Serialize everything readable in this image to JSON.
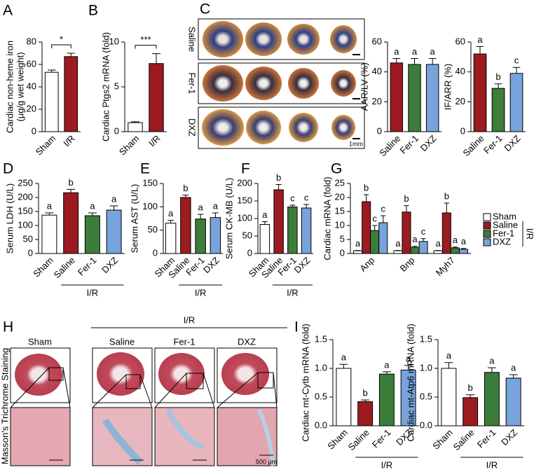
{
  "figure": {
    "panels": [
      "A",
      "B",
      "C",
      "D",
      "E",
      "F",
      "G",
      "H",
      "I"
    ],
    "c_rows": [
      "Saline",
      "Fer-1",
      "DXZ"
    ],
    "c_scale": "1mm",
    "h_columns": [
      "Sham",
      "Saline",
      "Fer-1",
      "DXZ"
    ],
    "h_group": "I/R",
    "h_side": "Masson's Trichrome Staining",
    "h_scale": "500 μm"
  },
  "chart_data": [
    {
      "type": "bar",
      "ylabel": [
        "Cardiac non-heme iron",
        "(μg/g wet weight)"
      ],
      "categories": [
        "Sham",
        "I/R"
      ],
      "values": [
        53,
        67
      ],
      "errors": [
        2,
        3
      ],
      "colors": [
        "#ffffff",
        "#9b1b20"
      ],
      "significance": "*",
      "ylim": [
        0,
        80
      ],
      "yticks": [
        0,
        20,
        40,
        60,
        80
      ]
    },
    {
      "type": "bar",
      "ylabel": "Cardiac Ptgs2 mRNA (fold)",
      "categories": [
        "Sham",
        "I/R"
      ],
      "values": [
        1,
        7.6
      ],
      "errors": [
        0.1,
        1.1
      ],
      "colors": [
        "#ffffff",
        "#9b1b20"
      ],
      "significance": "***",
      "ylim": [
        0,
        10
      ],
      "yticks": [
        0,
        5,
        10
      ]
    },
    {
      "type": "bar",
      "ylabel": "AAR/LV (%)",
      "categories": [
        "Saline",
        "Fer-1",
        "DXZ"
      ],
      "values": [
        46,
        45,
        45
      ],
      "errors": [
        3,
        4,
        4
      ],
      "colors": [
        "#9b1b20",
        "#3c7d3a",
        "#78a3dc"
      ],
      "letters": [
        "a",
        "a",
        "a"
      ],
      "ylim": [
        0,
        60
      ],
      "yticks": [
        0,
        20,
        40,
        60
      ]
    },
    {
      "type": "bar",
      "ylabel": "IF/ARR (%)",
      "categories": [
        "Saline",
        "Fer-1",
        "DXZ"
      ],
      "values": [
        52,
        29,
        39
      ],
      "errors": [
        5,
        3,
        4
      ],
      "colors": [
        "#9b1b20",
        "#3c7d3a",
        "#78a3dc"
      ],
      "letters": [
        "a",
        "b",
        "c"
      ],
      "ylim": [
        0,
        60
      ],
      "yticks": [
        0,
        20,
        40,
        60
      ]
    },
    {
      "type": "bar",
      "ylabel": "Serum LDH (U/L)",
      "categories": [
        "Sham",
        "Saline",
        "Fer-1",
        "DXZ"
      ],
      "values": [
        137,
        217,
        135,
        155
      ],
      "errors": [
        8,
        12,
        10,
        15
      ],
      "colors": [
        "#ffffff",
        "#9b1b20",
        "#3c7d3a",
        "#78a3dc"
      ],
      "letters": [
        "a",
        "b",
        "a",
        "a"
      ],
      "group_label": "I/R",
      "ylim": [
        0,
        250
      ],
      "yticks": [
        0,
        50,
        100,
        150,
        200,
        250
      ]
    },
    {
      "type": "bar",
      "ylabel": "Serum AST (U/L)",
      "categories": [
        "Sham",
        "Saline",
        "Fer-1",
        "DXZ"
      ],
      "values": [
        65,
        120,
        74,
        77
      ],
      "errors": [
        6,
        5,
        10,
        10
      ],
      "colors": [
        "#ffffff",
        "#9b1b20",
        "#3c7d3a",
        "#78a3dc"
      ],
      "letters": [
        "a",
        "b",
        "a",
        "a"
      ],
      "group_label": "I/R",
      "ylim": [
        0,
        150
      ],
      "yticks": [
        0,
        50,
        100,
        150
      ]
    },
    {
      "type": "bar",
      "ylabel": "Serum CK-MB (U/L)",
      "categories": [
        "Sham",
        "Saline",
        "Fer-1",
        "DXZ"
      ],
      "values": [
        83,
        182,
        133,
        130
      ],
      "errors": [
        8,
        15,
        5,
        10
      ],
      "colors": [
        "#ffffff",
        "#9b1b20",
        "#3c7d3a",
        "#78a3dc"
      ],
      "letters": [
        "a",
        "b",
        "c",
        "c"
      ],
      "group_label": "I/R",
      "ylim": [
        0,
        200
      ],
      "yticks": [
        0,
        50,
        100,
        150,
        200
      ]
    },
    {
      "type": "bar",
      "ylabel": "Cardiac mRNA (fold)",
      "categories": [
        "Anp",
        "Bnp",
        "Myh7"
      ],
      "legend_group": "I/R",
      "series": [
        {
          "name": "Sham",
          "color": "#ffffff",
          "values": [
            1,
            1,
            1
          ],
          "errors": [
            0.1,
            0.1,
            0.1
          ],
          "letters": [
            "a",
            "a",
            "a"
          ]
        },
        {
          "name": "Saline",
          "color": "#9b1b20",
          "values": [
            18.5,
            14.8,
            14.5
          ],
          "errors": [
            2.5,
            2.3,
            3.5
          ],
          "letters": [
            "b",
            "b",
            "b"
          ]
        },
        {
          "name": "Fer-1",
          "color": "#3c7d3a",
          "values": [
            8.2,
            2.2,
            2
          ],
          "errors": [
            1.8,
            0.4,
            0.3
          ],
          "letters": [
            "c",
            "a",
            "a"
          ]
        },
        {
          "name": "DXZ",
          "color": "#78a3dc",
          "values": [
            11,
            4.3,
            1.5
          ],
          "errors": [
            2.5,
            1,
            0.3
          ],
          "letters": [
            "c",
            "c",
            "a"
          ]
        }
      ],
      "ylim": [
        0,
        25
      ],
      "yticks": [
        0,
        5,
        10,
        15,
        20,
        25
      ]
    },
    {
      "type": "bar",
      "ylabel": "Cardiac mt-Cytb mRNA (fold)",
      "categories": [
        "Sham",
        "Saline",
        "Fer-1",
        "DXZ"
      ],
      "values": [
        1.0,
        0.42,
        0.9,
        0.97
      ],
      "errors": [
        0.07,
        0.03,
        0.04,
        0.08
      ],
      "colors": [
        "#ffffff",
        "#9b1b20",
        "#3c7d3a",
        "#78a3dc"
      ],
      "letters": [
        "a",
        "b",
        "a",
        "a"
      ],
      "group_label": "I/R",
      "ylim": [
        0,
        1.5
      ],
      "yticks": [
        {
          "value": 0,
          "label": "0.0"
        },
        0.5,
        {
          "value": 1,
          "label": "1.0"
        },
        1.5
      ]
    },
    {
      "type": "bar",
      "ylabel": "Cardiac mt-Atp6 mRNA (fold)",
      "categories": [
        "Sham",
        "Saline",
        "Fer-1",
        "DXZ"
      ],
      "values": [
        1.0,
        0.49,
        0.93,
        0.83
      ],
      "errors": [
        0.1,
        0.05,
        0.08,
        0.06
      ],
      "colors": [
        "#ffffff",
        "#9b1b20",
        "#3c7d3a",
        "#78a3dc"
      ],
      "letters": [
        "a",
        "b",
        "a",
        "a"
      ],
      "group_label": "I/R",
      "ylim": [
        0,
        1.5
      ],
      "yticks": [
        {
          "value": 0,
          "label": "0.0"
        },
        0.5,
        {
          "value": 1,
          "label": "1.0"
        },
        1.5
      ]
    }
  ]
}
